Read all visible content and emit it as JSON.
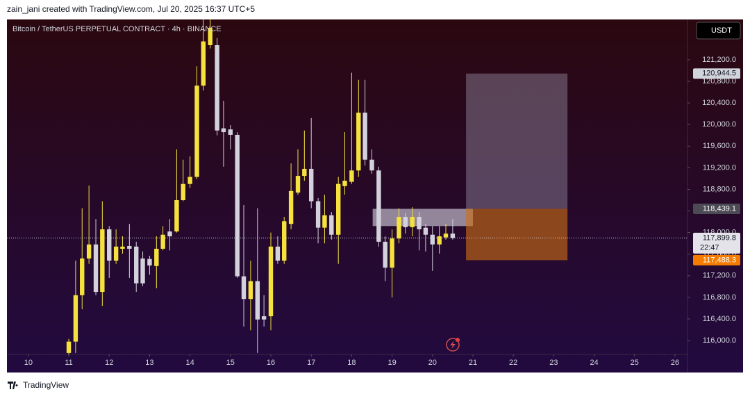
{
  "header": "zain_jani created with TradingView.com, Jul 20, 2025 16:37 UTC+5",
  "footer": "TradingView",
  "chart_data": {
    "type": "candlestick",
    "title": "Bitcoin / TetherUS PERPETUAL CONTRACT · 4h · BINANCE",
    "currency": "USDT",
    "up_color": "#f5e23c",
    "down_color": "#d3d2dc",
    "x": [
      11,
      11.17,
      11.33,
      11.5,
      11.67,
      11.83,
      12,
      12.17,
      12.33,
      12.5,
      12.67,
      12.83,
      13,
      13.17,
      13.33,
      13.5,
      13.67,
      13.83,
      14,
      14.17,
      14.33,
      14.5,
      14.67,
      14.83,
      15,
      15.17,
      15.33,
      15.5,
      15.67,
      15.83,
      16,
      16.17,
      16.33,
      16.5,
      16.67,
      16.83,
      17,
      17.17,
      17.33,
      17.5,
      17.67,
      17.83,
      18,
      18.17,
      18.33,
      18.5,
      18.67,
      18.83,
      19,
      19.17,
      19.33,
      19.5,
      19.67,
      19.83,
      20,
      20.17,
      20.33,
      20.5
    ],
    "open": [
      115770,
      115980,
      116840,
      117520,
      117780,
      116900,
      118060,
      117480,
      117700,
      117750,
      117740,
      117520,
      117510,
      117380,
      117700,
      118020,
      118020,
      118600,
      118900,
      119030,
      120720,
      121470,
      121470,
      119930,
      119910,
      119810,
      117190,
      116770,
      117100,
      116450,
      116450,
      117740,
      117480,
      118160,
      118740,
      119050,
      119180,
      118580,
      118090,
      118320,
      117960,
      118860,
      118940,
      119150,
      120220,
      119350,
      119150,
      117830,
      117350,
      117890,
      118290,
      118100,
      118290,
      118090,
      117960,
      117780,
      117910,
      117980
    ],
    "high": [
      116030,
      117480,
      118450,
      118870,
      118250,
      118580,
      118120,
      118060,
      117930,
      118160,
      117830,
      117650,
      117570,
      117930,
      118120,
      118250,
      119540,
      119350,
      119410,
      121080,
      121950,
      121950,
      121600,
      120440,
      119990,
      119860,
      118510,
      117480,
      118450,
      116840,
      118000,
      117930,
      118290,
      119280,
      119540,
      119890,
      120120,
      118640,
      118700,
      118380,
      119030,
      119860,
      120960,
      120830,
      120830,
      119540,
      119220,
      117930,
      118060,
      118450,
      118360,
      118470,
      118380,
      118160,
      118120,
      118120,
      118160,
      118250
    ],
    "low": [
      115740,
      115770,
      116580,
      117420,
      116840,
      116640,
      117160,
      117420,
      117610,
      117160,
      116900,
      117010,
      117220,
      116970,
      117670,
      117670,
      118000,
      118580,
      118830,
      118990,
      120630,
      121410,
      119800,
      119220,
      119540,
      117160,
      116260,
      116190,
      115770,
      116260,
      116190,
      117420,
      117420,
      118060,
      118700,
      118960,
      118450,
      117800,
      117800,
      117870,
      117420,
      118700,
      118900,
      119030,
      119240,
      119090,
      117740,
      117100,
      116800,
      117800,
      117980,
      117930,
      117670,
      117650,
      117290,
      117610,
      117870,
      117870
    ],
    "close": [
      115980,
      116840,
      117520,
      117780,
      116900,
      118060,
      117480,
      117740,
      117740,
      117700,
      117060,
      117060,
      117390,
      117700,
      117960,
      117930,
      118600,
      118900,
      119030,
      120720,
      121540,
      121790,
      119890,
      119860,
      119810,
      117190,
      116770,
      117100,
      116390,
      116390,
      117740,
      117480,
      118210,
      118770,
      119050,
      119180,
      118580,
      118090,
      118320,
      117960,
      118900,
      118960,
      119150,
      120220,
      119350,
      119150,
      117830,
      117350,
      117890,
      118290,
      118100,
      118290,
      118060,
      117960,
      117780,
      117930,
      117980,
      117900
    ],
    "xlim": [
      9.47,
      26.31
    ],
    "ylim": [
      115743,
      121946
    ],
    "xticks": [
      10,
      11,
      12,
      13,
      14,
      15,
      16,
      17,
      18,
      19,
      20,
      21,
      22,
      23,
      24,
      25,
      26
    ],
    "yticks": [
      {
        "value": 116000,
        "label": "116,000.0"
      },
      {
        "value": 116400,
        "label": "116,400.0"
      },
      {
        "value": 116800,
        "label": "116,800.0"
      },
      {
        "value": 117200,
        "label": "117,200.0"
      },
      {
        "value": 117600,
        "label": "117,600.0"
      },
      {
        "value": 118000,
        "label": "118,000.0"
      },
      {
        "value": 118400,
        "label": "118,400.0"
      },
      {
        "value": 118800,
        "label": "118,800.0"
      },
      {
        "value": 119200,
        "label": "119,200.0"
      },
      {
        "value": 119600,
        "label": "119,600.0"
      },
      {
        "value": 120000,
        "label": "120,000.0"
      },
      {
        "value": 120400,
        "label": "120,400.0"
      },
      {
        "value": 120800,
        "label": "120,800.0"
      },
      {
        "value": 121200,
        "label": "121,200.0"
      }
    ],
    "last_price": {
      "value": 117899.8,
      "label": "117,899.8",
      "countdown": "22:47"
    },
    "zone": {
      "x": [
        18.52,
        21.0
      ],
      "y": [
        118120,
        118439.1
      ]
    },
    "position": {
      "x": [
        20.83,
        23.34
      ],
      "target": {
        "value": 120944.5,
        "label": "120,944.5"
      },
      "entry": {
        "value": 118439.1,
        "label": "118,439.1"
      },
      "stop": {
        "value": 117488.3,
        "label": "117,488.3"
      }
    }
  }
}
